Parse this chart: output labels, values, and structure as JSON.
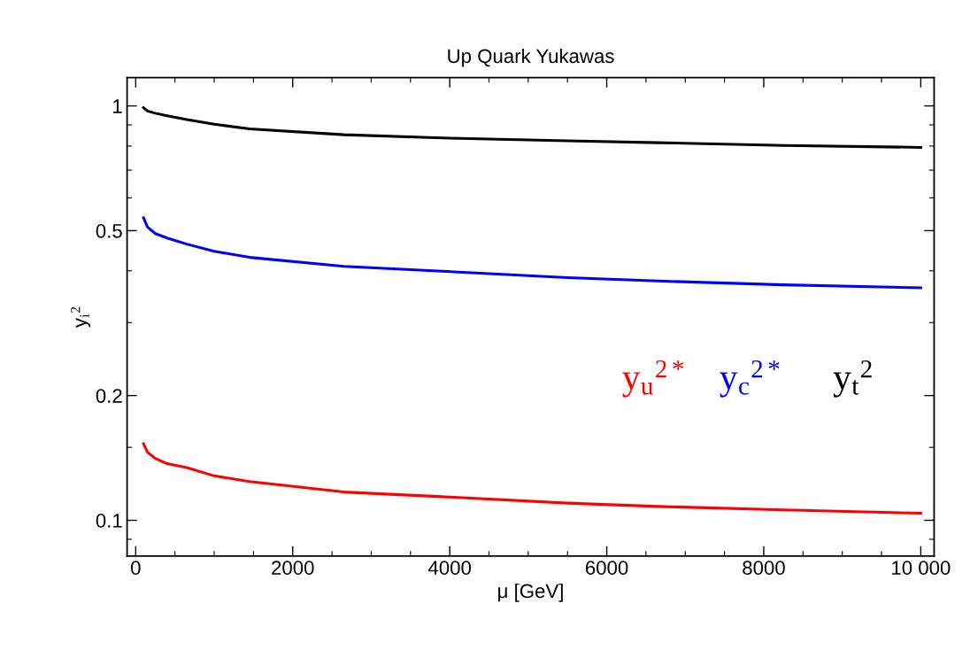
{
  "chart_data": {
    "type": "line",
    "title": "Up Quark Yukawas",
    "xlabel": "μ [GeV]",
    "ylabel": "y$_{i}$$^{2}$",
    "x": [
      100,
      150,
      250,
      400,
      650,
      1000,
      1450,
      2650,
      3900,
      5500,
      6650,
      8250,
      10000
    ],
    "series": [
      {
        "name": "y$_{u}$$^{2*}$",
        "color": "#ff0000",
        "values": [
          0.153,
          0.146,
          0.141,
          0.137,
          0.134,
          0.128,
          0.124,
          0.117,
          0.114,
          0.11,
          0.108,
          0.106,
          0.104
        ]
      },
      {
        "name": "y$_{c}$$^{2*}$",
        "color": "#0000ff",
        "values": [
          0.537,
          0.51,
          0.492,
          0.48,
          0.464,
          0.446,
          0.431,
          0.41,
          0.399,
          0.385,
          0.378,
          0.37,
          0.364
        ]
      },
      {
        "name": "y$_{t}$$^{2}$",
        "color": "#000000",
        "values": [
          0.99,
          0.972,
          0.96,
          0.947,
          0.927,
          0.903,
          0.88,
          0.852,
          0.837,
          0.824,
          0.815,
          0.803,
          0.794
        ]
      }
    ],
    "log": "y",
    "xlim": [
      -110,
      10170
    ],
    "ylim": [
      0.082,
      1.17
    ],
    "xticks": [
      0,
      {
        "value": 500,
        "label": null
      },
      {
        "value": 1000,
        "label": null
      },
      {
        "value": 1500,
        "label": null
      },
      2000,
      {
        "value": 2500,
        "label": null
      },
      {
        "value": 3000,
        "label": null
      },
      {
        "value": 3500,
        "label": null
      },
      4000,
      {
        "value": 4500,
        "label": null
      },
      {
        "value": 5000,
        "label": null
      },
      {
        "value": 5500,
        "label": null
      },
      6000,
      {
        "value": 6500,
        "label": null
      },
      {
        "value": 7000,
        "label": null
      },
      {
        "value": 7500,
        "label": null
      },
      8000,
      {
        "value": 8500,
        "label": null
      },
      {
        "value": 9000,
        "label": null
      },
      {
        "value": 9500,
        "label": null
      },
      {
        "value": 10000,
        "label": "10 000"
      }
    ],
    "yticks": [
      {
        "value": 0.09,
        "label": null
      },
      0.1,
      {
        "value": 0.15,
        "label": null
      },
      0.2,
      {
        "value": 0.3,
        "label": null
      },
      {
        "value": 0.4,
        "label": null
      },
      0.5,
      {
        "value": 0.6,
        "label": null
      },
      {
        "value": 0.7,
        "label": null
      },
      {
        "value": 0.8,
        "label": null
      },
      {
        "value": 0.9,
        "label": null
      },
      1
    ],
    "grid": false,
    "marker": "none",
    "line_style": "solid"
  }
}
